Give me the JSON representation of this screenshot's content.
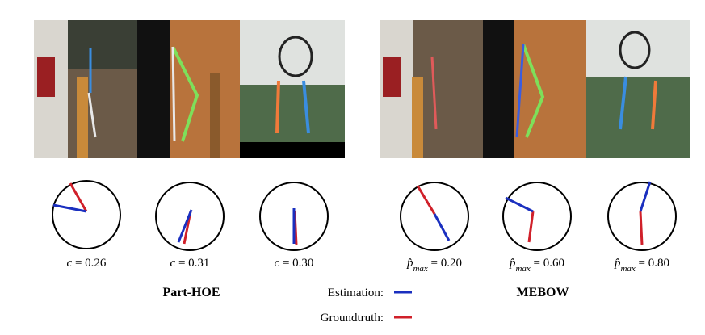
{
  "groups": [
    {
      "title": "Part-HOE",
      "panels": [
        {
          "label": [
            "c",
            " = 0.26"
          ]
        },
        {
          "label": [
            "c",
            " = 0.31"
          ]
        },
        {
          "label": [
            "c",
            " = 0.30"
          ]
        }
      ]
    },
    {
      "title": "MEBOW",
      "panels": [
        {
          "label": [
            "p̂",
            "max",
            " = 0.20"
          ]
        },
        {
          "label": [
            "p̂",
            "max",
            " = 0.60"
          ]
        },
        {
          "label": [
            "p̂",
            "max",
            " = 0.80"
          ]
        }
      ]
    }
  ],
  "legend": {
    "estimation": "Estimation:",
    "groundtruth": "Groundtruth:"
  }
}
